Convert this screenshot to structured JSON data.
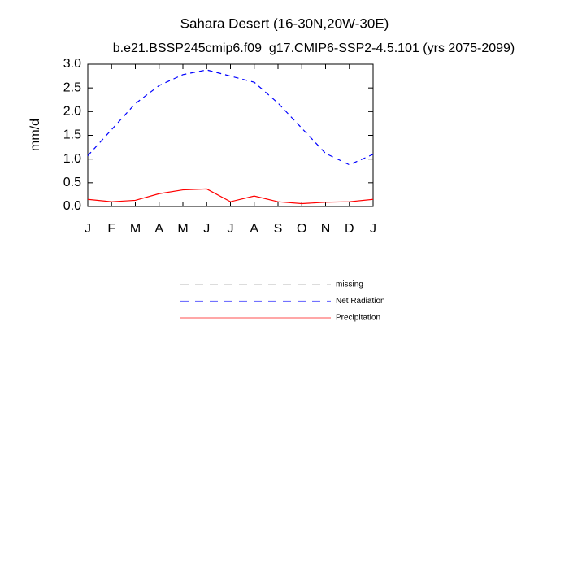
{
  "chart_data": {
    "type": "line",
    "title": "Sahara Desert (16-30N,20W-30E)",
    "subtitle": "b.e21.BSSP245cmip6.f09_g17.CMIP6-SSP2-4.5.101 (yrs 2075-2099)",
    "y_label": "mm/d",
    "categories": [
      "J",
      "F",
      "M",
      "A",
      "M",
      "J",
      "J",
      "A",
      "S",
      "O",
      "N",
      "D",
      "J"
    ],
    "series": [
      {
        "name": "missing",
        "color": "#999999",
        "dash": true,
        "values": [
          null,
          null,
          null,
          null,
          null,
          null,
          null,
          null,
          null,
          null,
          null,
          null,
          null
        ]
      },
      {
        "name": "Net Radiation",
        "color": "#0000ff",
        "dash": true,
        "values": [
          1.07,
          1.62,
          2.17,
          2.55,
          2.78,
          2.88,
          2.75,
          2.62,
          2.18,
          1.65,
          1.12,
          0.88,
          1.1
        ]
      },
      {
        "name": "Precipitation",
        "color": "#ff0000",
        "dash": false,
        "values": [
          0.15,
          0.1,
          0.13,
          0.27,
          0.35,
          0.37,
          0.1,
          0.22,
          0.1,
          0.06,
          0.09,
          0.1,
          0.15
        ]
      }
    ],
    "ylim": [
      0,
      3
    ],
    "yticks": [
      {
        "value": 0,
        "label": "0.0"
      },
      0.5,
      {
        "value": 1,
        "label": "1.0"
      },
      1.5,
      {
        "value": 2,
        "label": "2.0"
      },
      2.5,
      {
        "value": 3,
        "label": "3.0"
      }
    ]
  }
}
